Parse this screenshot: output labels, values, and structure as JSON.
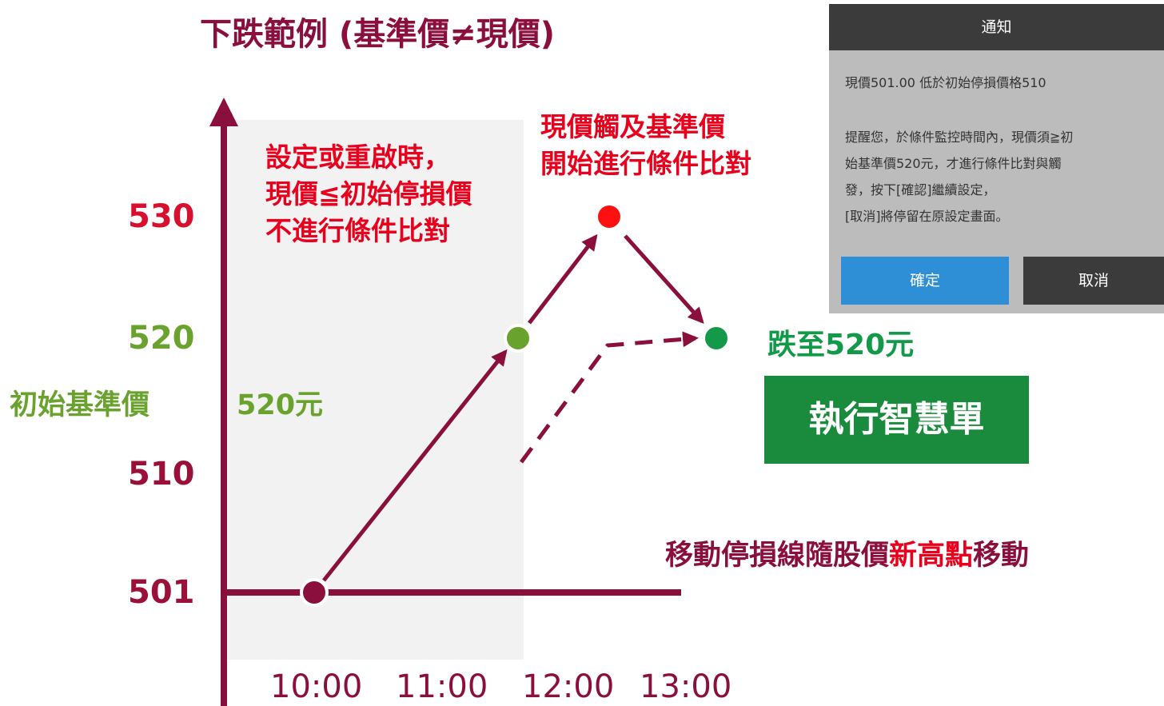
{
  "title": "下跌範例 (基準價≠現價)",
  "y_labels": [
    "530",
    "520",
    "510",
    "501"
  ],
  "base_label": "初始基準價",
  "base_value": "520元",
  "x_labels": [
    "10:00",
    "11:00",
    "12:00",
    "13:00"
  ],
  "note_left": [
    "設定或重啟時，",
    "現價≦初始停損價",
    "不進行條件比對"
  ],
  "note_top": [
    "現價觸及基準價",
    "開始進行條件比對"
  ],
  "drop_label": "跌至520元",
  "action": "執行智慧單",
  "trail": [
    "移動停損線隨股價",
    "新高點",
    "移動"
  ],
  "dialog": {
    "title": "通知",
    "message": "現價501.00 低於初始停損價格510",
    "reminder": [
      "提醒您，於條件監控時間內，現價須≧初",
      "始基準價520元，才進行條件比對與觸",
      "發，按下[確認]繼續設定，",
      "[取消]將停留在原設定畫面。"
    ],
    "buttons": [
      "確定",
      "取消"
    ]
  }
}
